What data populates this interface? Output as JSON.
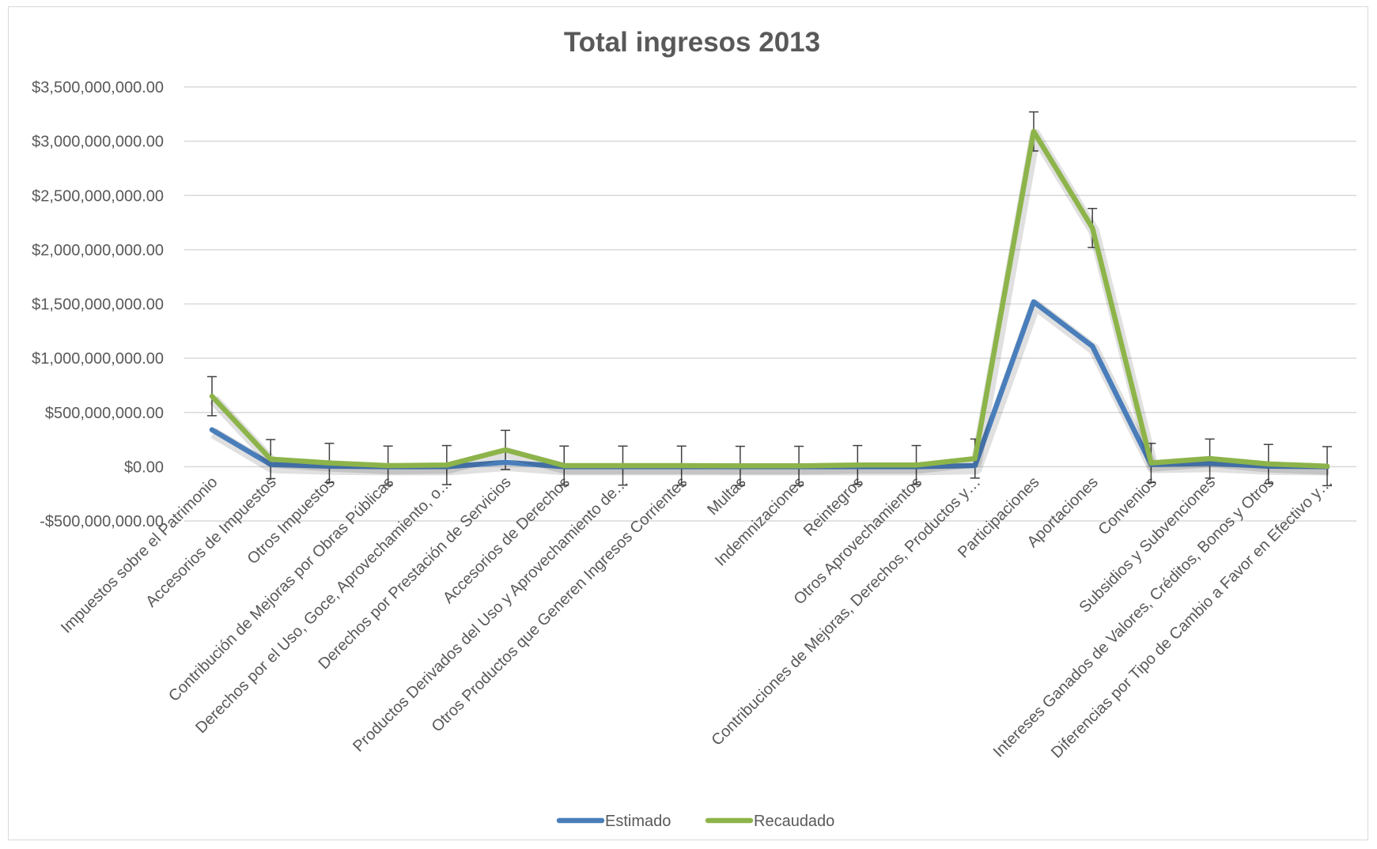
{
  "chart_data": {
    "type": "line",
    "title": "Total ingresos 2013",
    "xlabel": "",
    "ylabel": "",
    "ylim": [
      -500000000,
      3500000000
    ],
    "yticks": [
      -500000000,
      0,
      500000000,
      1000000000,
      1500000000,
      2000000000,
      2500000000,
      3000000000,
      3500000000
    ],
    "ytick_labels": [
      "-$500,000,000.00",
      "$0.00",
      "$500,000,000.00",
      "$1,000,000,000.00",
      "$1,500,000,000.00",
      "$2,000,000,000.00",
      "$2,500,000,000.00",
      "$3,000,000,000.00",
      "$3,500,000,000.00"
    ],
    "grid": true,
    "legend_position": "bottom",
    "error_bars": "Recaudado",
    "error_bar_size": 180000000,
    "categories": [
      "Impuestos sobre el Patrimonio",
      "Accesorios de Impuestos",
      "Otros Impuestos",
      "Contribución de Mejoras por Obras Públicas",
      "Derechos por el Uso, Goce, Aprovechamiento, o…",
      "Derechos por Prestación de Servicios",
      "Accesorios de Derechos",
      "Productos Derivados del Uso y Aprovechamiento de…",
      "Otros Productos que Generen Ingresos Corrientes",
      "Multas",
      "Indemnizaciones",
      "Reintegros",
      "Otros Aprovechamientos",
      "Contribuciones de Mejoras, Derechos, Productos y…",
      "Participaciones",
      "Aportaciones",
      "Convenios",
      "Subsidios y Subvenciones",
      "Intereses Ganados de Valores, Créditos, Bonos y Otros",
      "Diferencias por Tipo de Cambio a Favor en Efectivo y…"
    ],
    "series": [
      {
        "name": "Estimado",
        "color": "#4a7ebb",
        "values": [
          340000000,
          20000000,
          5000000,
          0,
          0,
          40000000,
          0,
          0,
          0,
          0,
          0,
          0,
          0,
          10000000,
          1520000000,
          1110000000,
          20000000,
          30000000,
          5000000,
          0
        ]
      },
      {
        "name": "Recaudado",
        "color": "#8db44a",
        "values": [
          650000000,
          70000000,
          35000000,
          10000000,
          15000000,
          155000000,
          10000000,
          10000000,
          10000000,
          8000000,
          8000000,
          15000000,
          15000000,
          75000000,
          3090000000,
          2200000000,
          35000000,
          75000000,
          25000000,
          5000000
        ]
      }
    ]
  }
}
